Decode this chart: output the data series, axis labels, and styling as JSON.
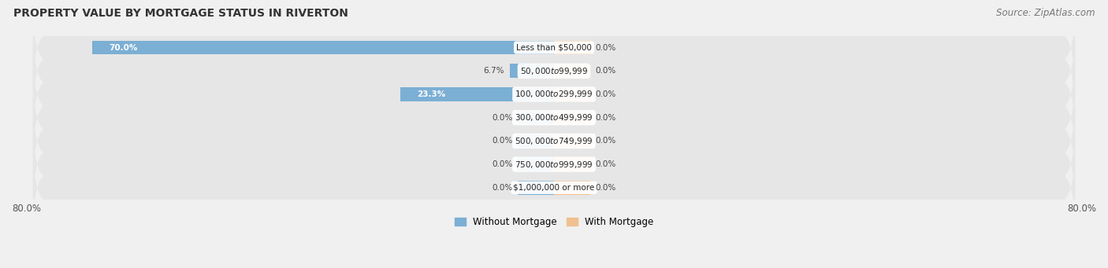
{
  "title": "PROPERTY VALUE BY MORTGAGE STATUS IN RIVERTON",
  "source": "Source: ZipAtlas.com",
  "categories": [
    "Less than $50,000",
    "$50,000 to $99,999",
    "$100,000 to $299,999",
    "$300,000 to $499,999",
    "$500,000 to $749,999",
    "$750,000 to $999,999",
    "$1,000,000 or more"
  ],
  "without_mortgage": [
    70.0,
    6.7,
    23.3,
    0.0,
    0.0,
    0.0,
    0.0
  ],
  "with_mortgage": [
    0.0,
    0.0,
    0.0,
    0.0,
    0.0,
    0.0,
    0.0
  ],
  "xlim": [
    -80,
    80
  ],
  "xtick_left": -80.0,
  "xtick_right": 80.0,
  "without_mortgage_color": "#7bafd4",
  "with_mortgage_color": "#f0c090",
  "row_bg_color": "#e6e6e6",
  "fig_bg_color": "#f0f0f0",
  "title_fontsize": 10,
  "source_fontsize": 8.5,
  "bar_height": 0.72,
  "legend_without": "Without Mortgage",
  "legend_with": "With Mortgage",
  "stub_size": 5.5
}
